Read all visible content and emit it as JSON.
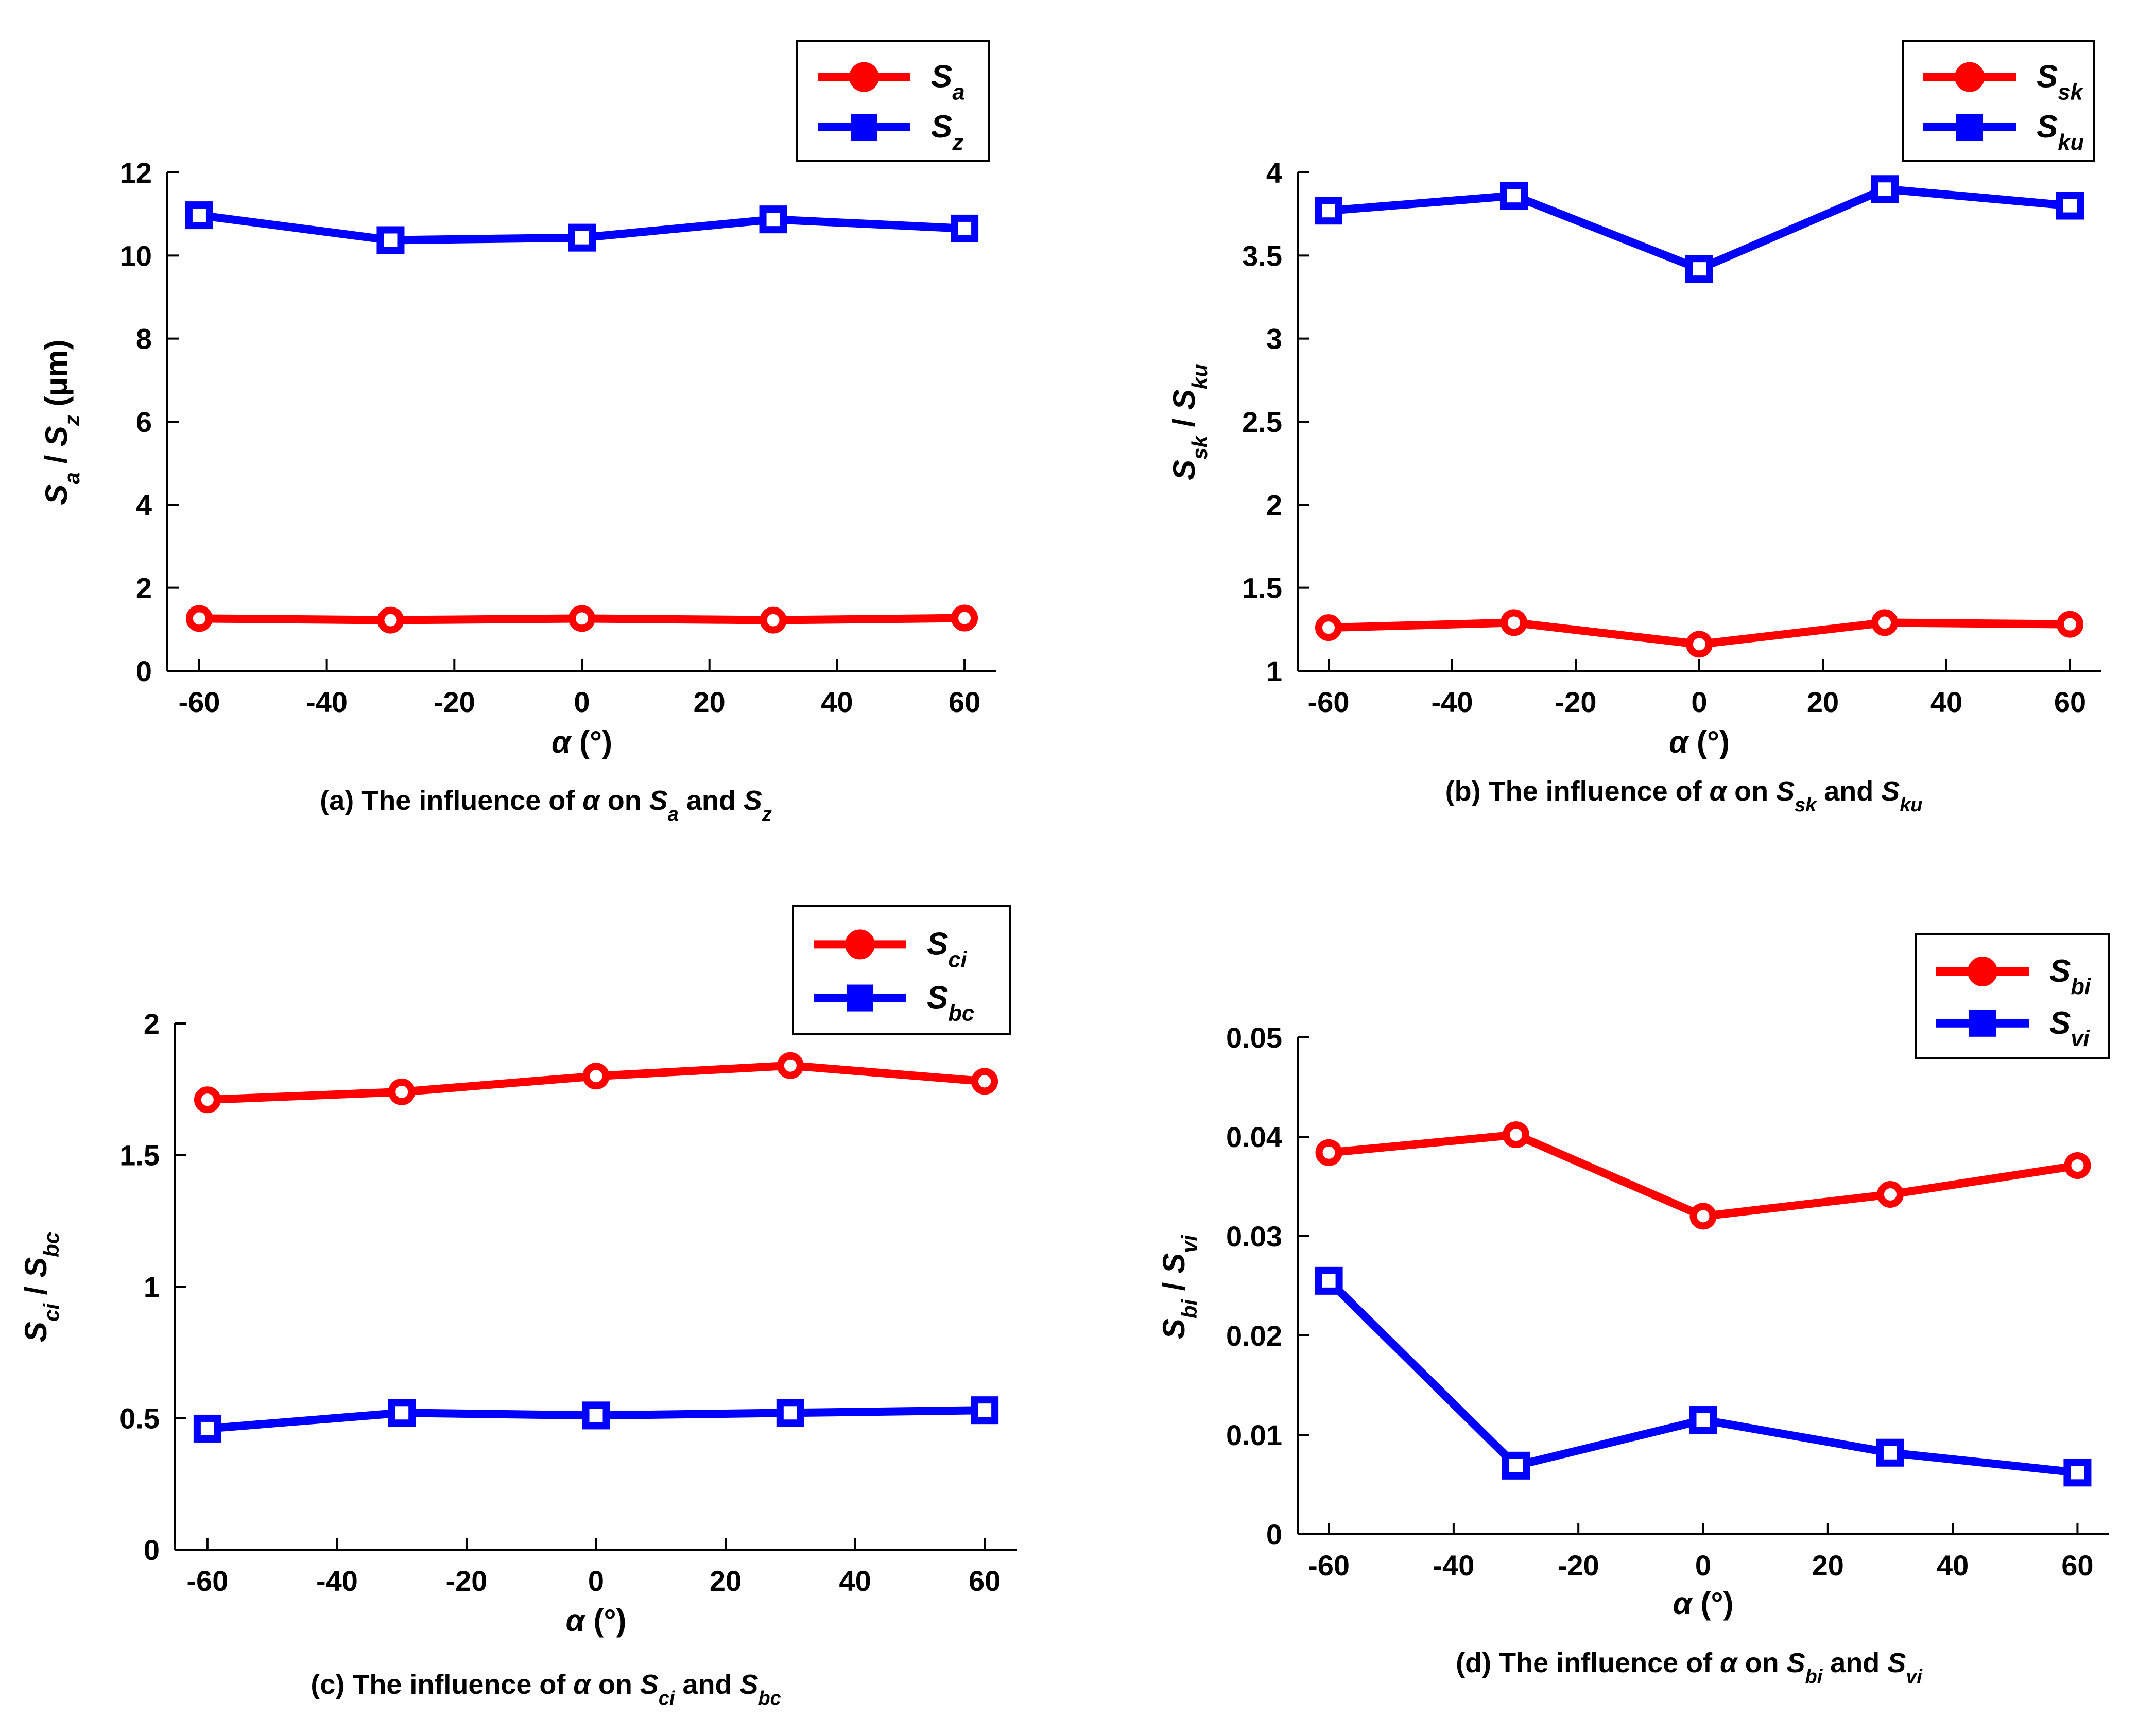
{
  "chart_data": [
    {
      "type": "line",
      "panel": "a",
      "x": [
        -60,
        -30,
        0,
        30,
        60
      ],
      "xlim": [
        -65,
        65
      ],
      "xticks": [
        -60,
        -40,
        -20,
        0,
        20,
        40,
        60
      ],
      "ylim": [
        0,
        12
      ],
      "yticks": [
        0,
        2,
        4,
        6,
        8,
        10,
        12
      ],
      "xlabel": {
        "symbol": "α",
        "unit": "(°)"
      },
      "ylabel": {
        "parts": [
          [
            "S",
            ""
          ],
          [
            "a",
            "sub"
          ],
          [
            " / ",
            ""
          ],
          [
            "S",
            ""
          ],
          [
            "z",
            "sub"
          ],
          [
            " (μm)",
            "plain"
          ]
        ]
      },
      "caption": {
        "parts": [
          [
            "(a) The influence of  ",
            "plain"
          ],
          [
            "α",
            "it"
          ],
          [
            " on ",
            "plain"
          ],
          [
            "S",
            "it"
          ],
          [
            "a",
            "sub"
          ],
          [
            " and ",
            "plain"
          ],
          [
            "S",
            "it"
          ],
          [
            "z",
            "sub"
          ]
        ]
      },
      "series": [
        {
          "name": "S",
          "sub": "a",
          "color": "#ff0000",
          "marker": "circle",
          "values": [
            1.26,
            1.22,
            1.26,
            1.22,
            1.27
          ]
        },
        {
          "name": "S",
          "sub": "z",
          "color": "#0000ff",
          "marker": "square",
          "values": [
            10.97,
            10.37,
            10.43,
            10.87,
            10.65
          ]
        }
      ]
    },
    {
      "type": "line",
      "panel": "b",
      "x": [
        -60,
        -30,
        0,
        30,
        60
      ],
      "xlim": [
        -65,
        65
      ],
      "xticks": [
        -60,
        -40,
        -20,
        0,
        20,
        40,
        60
      ],
      "ylim": [
        1,
        4
      ],
      "yticks": [
        1,
        1.5,
        2,
        2.5,
        3,
        3.5,
        4
      ],
      "xlabel": {
        "symbol": "α",
        "unit": "(°)"
      },
      "ylabel": {
        "parts": [
          [
            "S",
            ""
          ],
          [
            "sk",
            "sub"
          ],
          [
            " / ",
            ""
          ],
          [
            "S",
            ""
          ],
          [
            "ku",
            "sub"
          ]
        ]
      },
      "caption": {
        "parts": [
          [
            "(b) The influence of  ",
            "plain"
          ],
          [
            "α",
            "it"
          ],
          [
            " on ",
            "plain"
          ],
          [
            "S",
            "it"
          ],
          [
            "sk",
            "sub"
          ],
          [
            " and ",
            "plain"
          ],
          [
            "S",
            "it"
          ],
          [
            "ku",
            "sub"
          ]
        ]
      },
      "series": [
        {
          "name": "S",
          "sub": "sk",
          "color": "#ff0000",
          "marker": "circle",
          "values": [
            1.26,
            1.29,
            1.16,
            1.29,
            1.28
          ]
        },
        {
          "name": "S",
          "sub": "ku",
          "color": "#0000ff",
          "marker": "square",
          "values": [
            3.77,
            3.86,
            3.42,
            3.9,
            3.8
          ]
        }
      ]
    },
    {
      "type": "line",
      "panel": "c",
      "x": [
        -60,
        -30,
        0,
        30,
        60
      ],
      "xlim": [
        -65,
        65
      ],
      "xticks": [
        -60,
        -40,
        -20,
        0,
        20,
        40,
        60
      ],
      "ylim": [
        0,
        2
      ],
      "yticks": [
        0,
        0.5,
        1,
        1.5,
        2
      ],
      "xlabel": {
        "symbol": "α",
        "unit": "(°)"
      },
      "ylabel": {
        "parts": [
          [
            "S",
            ""
          ],
          [
            "ci",
            "sub"
          ],
          [
            " / ",
            ""
          ],
          [
            "S",
            ""
          ],
          [
            "bc",
            "sub"
          ]
        ]
      },
      "caption": {
        "parts": [
          [
            "(c) The influence of  ",
            "plain"
          ],
          [
            "α",
            "it"
          ],
          [
            " on ",
            "plain"
          ],
          [
            "S",
            "it"
          ],
          [
            "ci",
            "sub"
          ],
          [
            " and ",
            "plain"
          ],
          [
            "S",
            "it"
          ],
          [
            "bc",
            "sub"
          ]
        ]
      },
      "series": [
        {
          "name": "S",
          "sub": "ci",
          "color": "#ff0000",
          "marker": "circle",
          "values": [
            1.71,
            1.74,
            1.8,
            1.84,
            1.78
          ]
        },
        {
          "name": "S",
          "sub": "bc",
          "color": "#0000ff",
          "marker": "square",
          "values": [
            0.46,
            0.52,
            0.51,
            0.52,
            0.53
          ]
        }
      ]
    },
    {
      "type": "line",
      "panel": "d",
      "x": [
        -60,
        -30,
        0,
        30,
        60
      ],
      "xlim": [
        -65,
        65
      ],
      "xticks": [
        -60,
        -40,
        -20,
        0,
        20,
        40,
        60
      ],
      "ylim": [
        0,
        0.05
      ],
      "yticks": [
        0,
        0.01,
        0.02,
        0.03,
        0.04,
        0.05
      ],
      "xlabel": {
        "symbol": "α",
        "unit": "(°)"
      },
      "ylabel": {
        "parts": [
          [
            "S",
            ""
          ],
          [
            "bi",
            "sub"
          ],
          [
            " / ",
            ""
          ],
          [
            "S",
            ""
          ],
          [
            "vi",
            "sub"
          ]
        ]
      },
      "caption": {
        "parts": [
          [
            "(d) The influence of  ",
            "plain"
          ],
          [
            "α",
            "it"
          ],
          [
            " on ",
            "plain"
          ],
          [
            "S",
            "it"
          ],
          [
            "bi",
            "sub"
          ],
          [
            " and ",
            "plain"
          ],
          [
            "S",
            "it"
          ],
          [
            "vi",
            "sub"
          ]
        ]
      },
      "series": [
        {
          "name": "S",
          "sub": "bi",
          "color": "#ff0000",
          "marker": "circle",
          "values": [
            0.0384,
            0.0402,
            0.032,
            0.0342,
            0.0371
          ]
        },
        {
          "name": "S",
          "sub": "vi",
          "color": "#0000ff",
          "marker": "square",
          "values": [
            0.0255,
            0.0069,
            0.0115,
            0.0082,
            0.0062
          ]
        }
      ]
    }
  ]
}
